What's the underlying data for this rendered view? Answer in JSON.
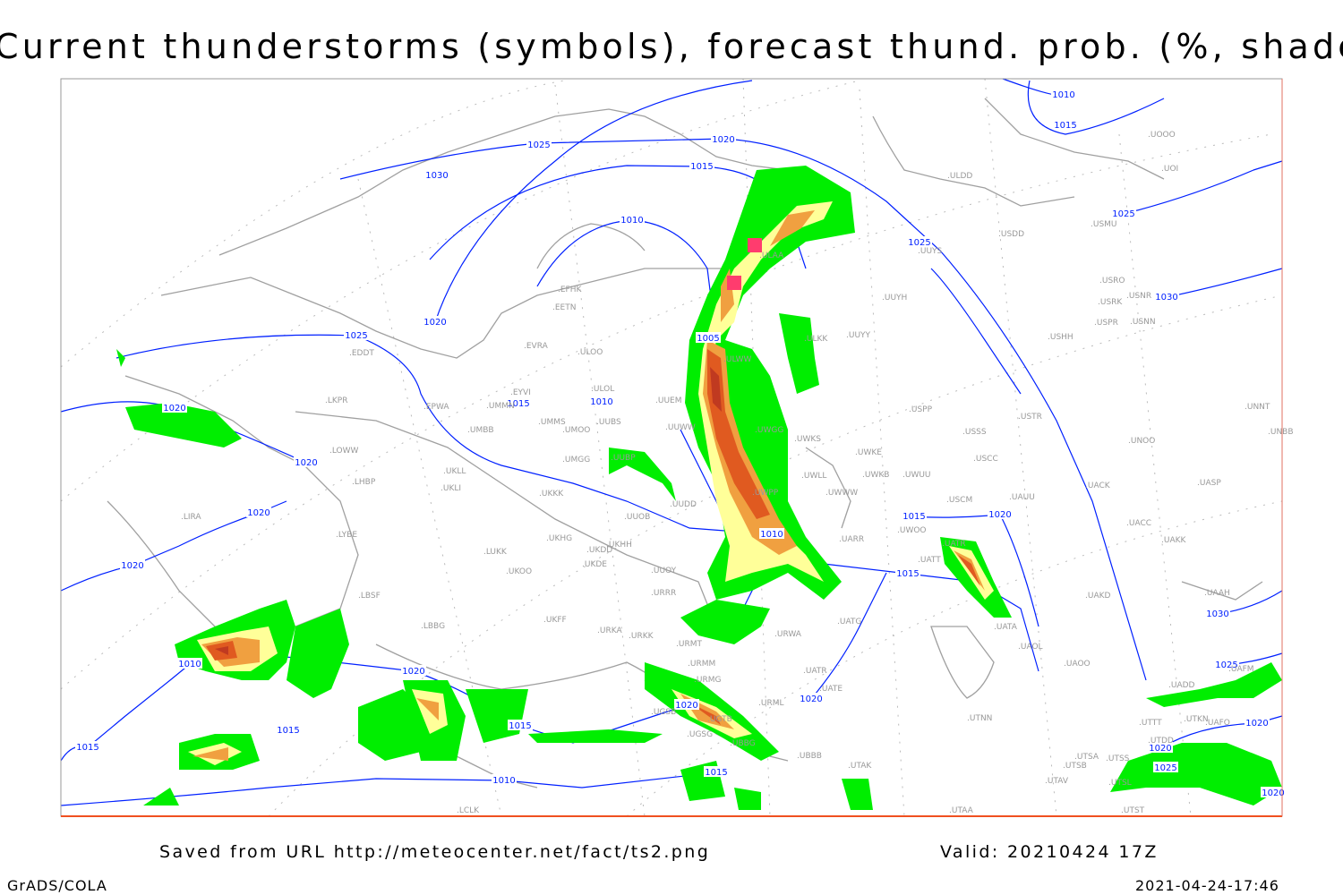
{
  "title": "Current thunderstorms (symbols), forecast thund. prob. (%, shaded)",
  "footer": {
    "source": "Saved from URL http://meteocenter.net/fact/ts2.png",
    "valid": "Valid: 20210424 17Z",
    "software": "GrADS/COLA",
    "timestamp": "2021-04-24-17:46"
  },
  "colors": {
    "isobar": "#0020ff",
    "coastline": "#a0a0a0",
    "prob_low": "#00ee00",
    "prob_mid": "#ffff99",
    "prob_high": "#f0a040",
    "prob_higher": "#e05a20",
    "prob_max": "#c03a20",
    "thunderstorm_symbol": "#ff3c6e"
  },
  "isobar_labels": [
    "1025",
    "1030",
    "1020",
    "1015",
    "1010",
    "1020",
    "1025",
    "1005",
    "1015",
    "1010",
    "1020",
    "1020",
    "1020",
    "1020",
    "1010",
    "1015",
    "1020",
    "1015",
    "1010",
    "1020",
    "1015",
    "1015",
    "1020",
    "1020",
    "1015",
    "1010",
    "1015",
    "1025",
    "1025",
    "1015",
    "1010",
    "1030",
    "1030",
    "1025",
    "1020",
    "1020",
    "1025",
    "1020"
  ],
  "stations": [
    "ULDD",
    "UOOO",
    "UOI",
    "USDD",
    "USMU",
    "UUYS",
    "USRO",
    "USRK",
    "USNR",
    "USPR",
    "USNN",
    "USHH",
    "UUYH",
    "UUYY",
    "ULAA",
    "ULKK",
    "ULWW",
    "EFHK",
    "EETN",
    "EVRA",
    "ULOO",
    "ULOL",
    "EYVI",
    "UMMN",
    "UMMS",
    "UMOO",
    "UUBS",
    "UUEM",
    "UUWW",
    "UMBB",
    "UWGG",
    "UWKS",
    "EPWA",
    "LKPR",
    "EDDT",
    "LOWW",
    "LHBP",
    "UKLL",
    "UKLI",
    "UMGG",
    "UUBP",
    "UWKE",
    "UWKB",
    "UWUU",
    "UWLL",
    "UWWW",
    "UWPP",
    "USSS",
    "USTR",
    "USPP",
    "USCC",
    "USCM",
    "UAUU",
    "UNOO",
    "UNNT",
    "UNBB",
    "UACK",
    "UASP",
    "UACC",
    "UAKK",
    "UATT",
    "UATR",
    "UWOO",
    "UARR",
    "UUDD",
    "UUOB",
    "UKHH",
    "UKDD",
    "UKDE",
    "UKHG",
    "UKOO",
    "LUKK",
    "UKKK",
    "LYBE",
    "LIRA",
    "LBSF",
    "LBBG",
    "UKFF",
    "URKA",
    "URKK",
    "URRR",
    "UUOY",
    "URMT",
    "URMM",
    "URMG",
    "UGTB",
    "UGSG",
    "UBBG",
    "UBBB",
    "URML",
    "UATE",
    "UATR",
    "UATG",
    "URWA",
    "UAOL",
    "UAOO",
    "UAKD",
    "UATA",
    "UAAH",
    "UAFM",
    "UADD",
    "UTKN",
    "UAFO",
    "UTTT",
    "UTDD",
    "UTSA",
    "UTSB",
    "UTSS",
    "UTAV",
    "UTSL",
    "UTAK",
    "UTNN",
    "UTAA",
    "UTST",
    "UGSB",
    "LCLK"
  ]
}
